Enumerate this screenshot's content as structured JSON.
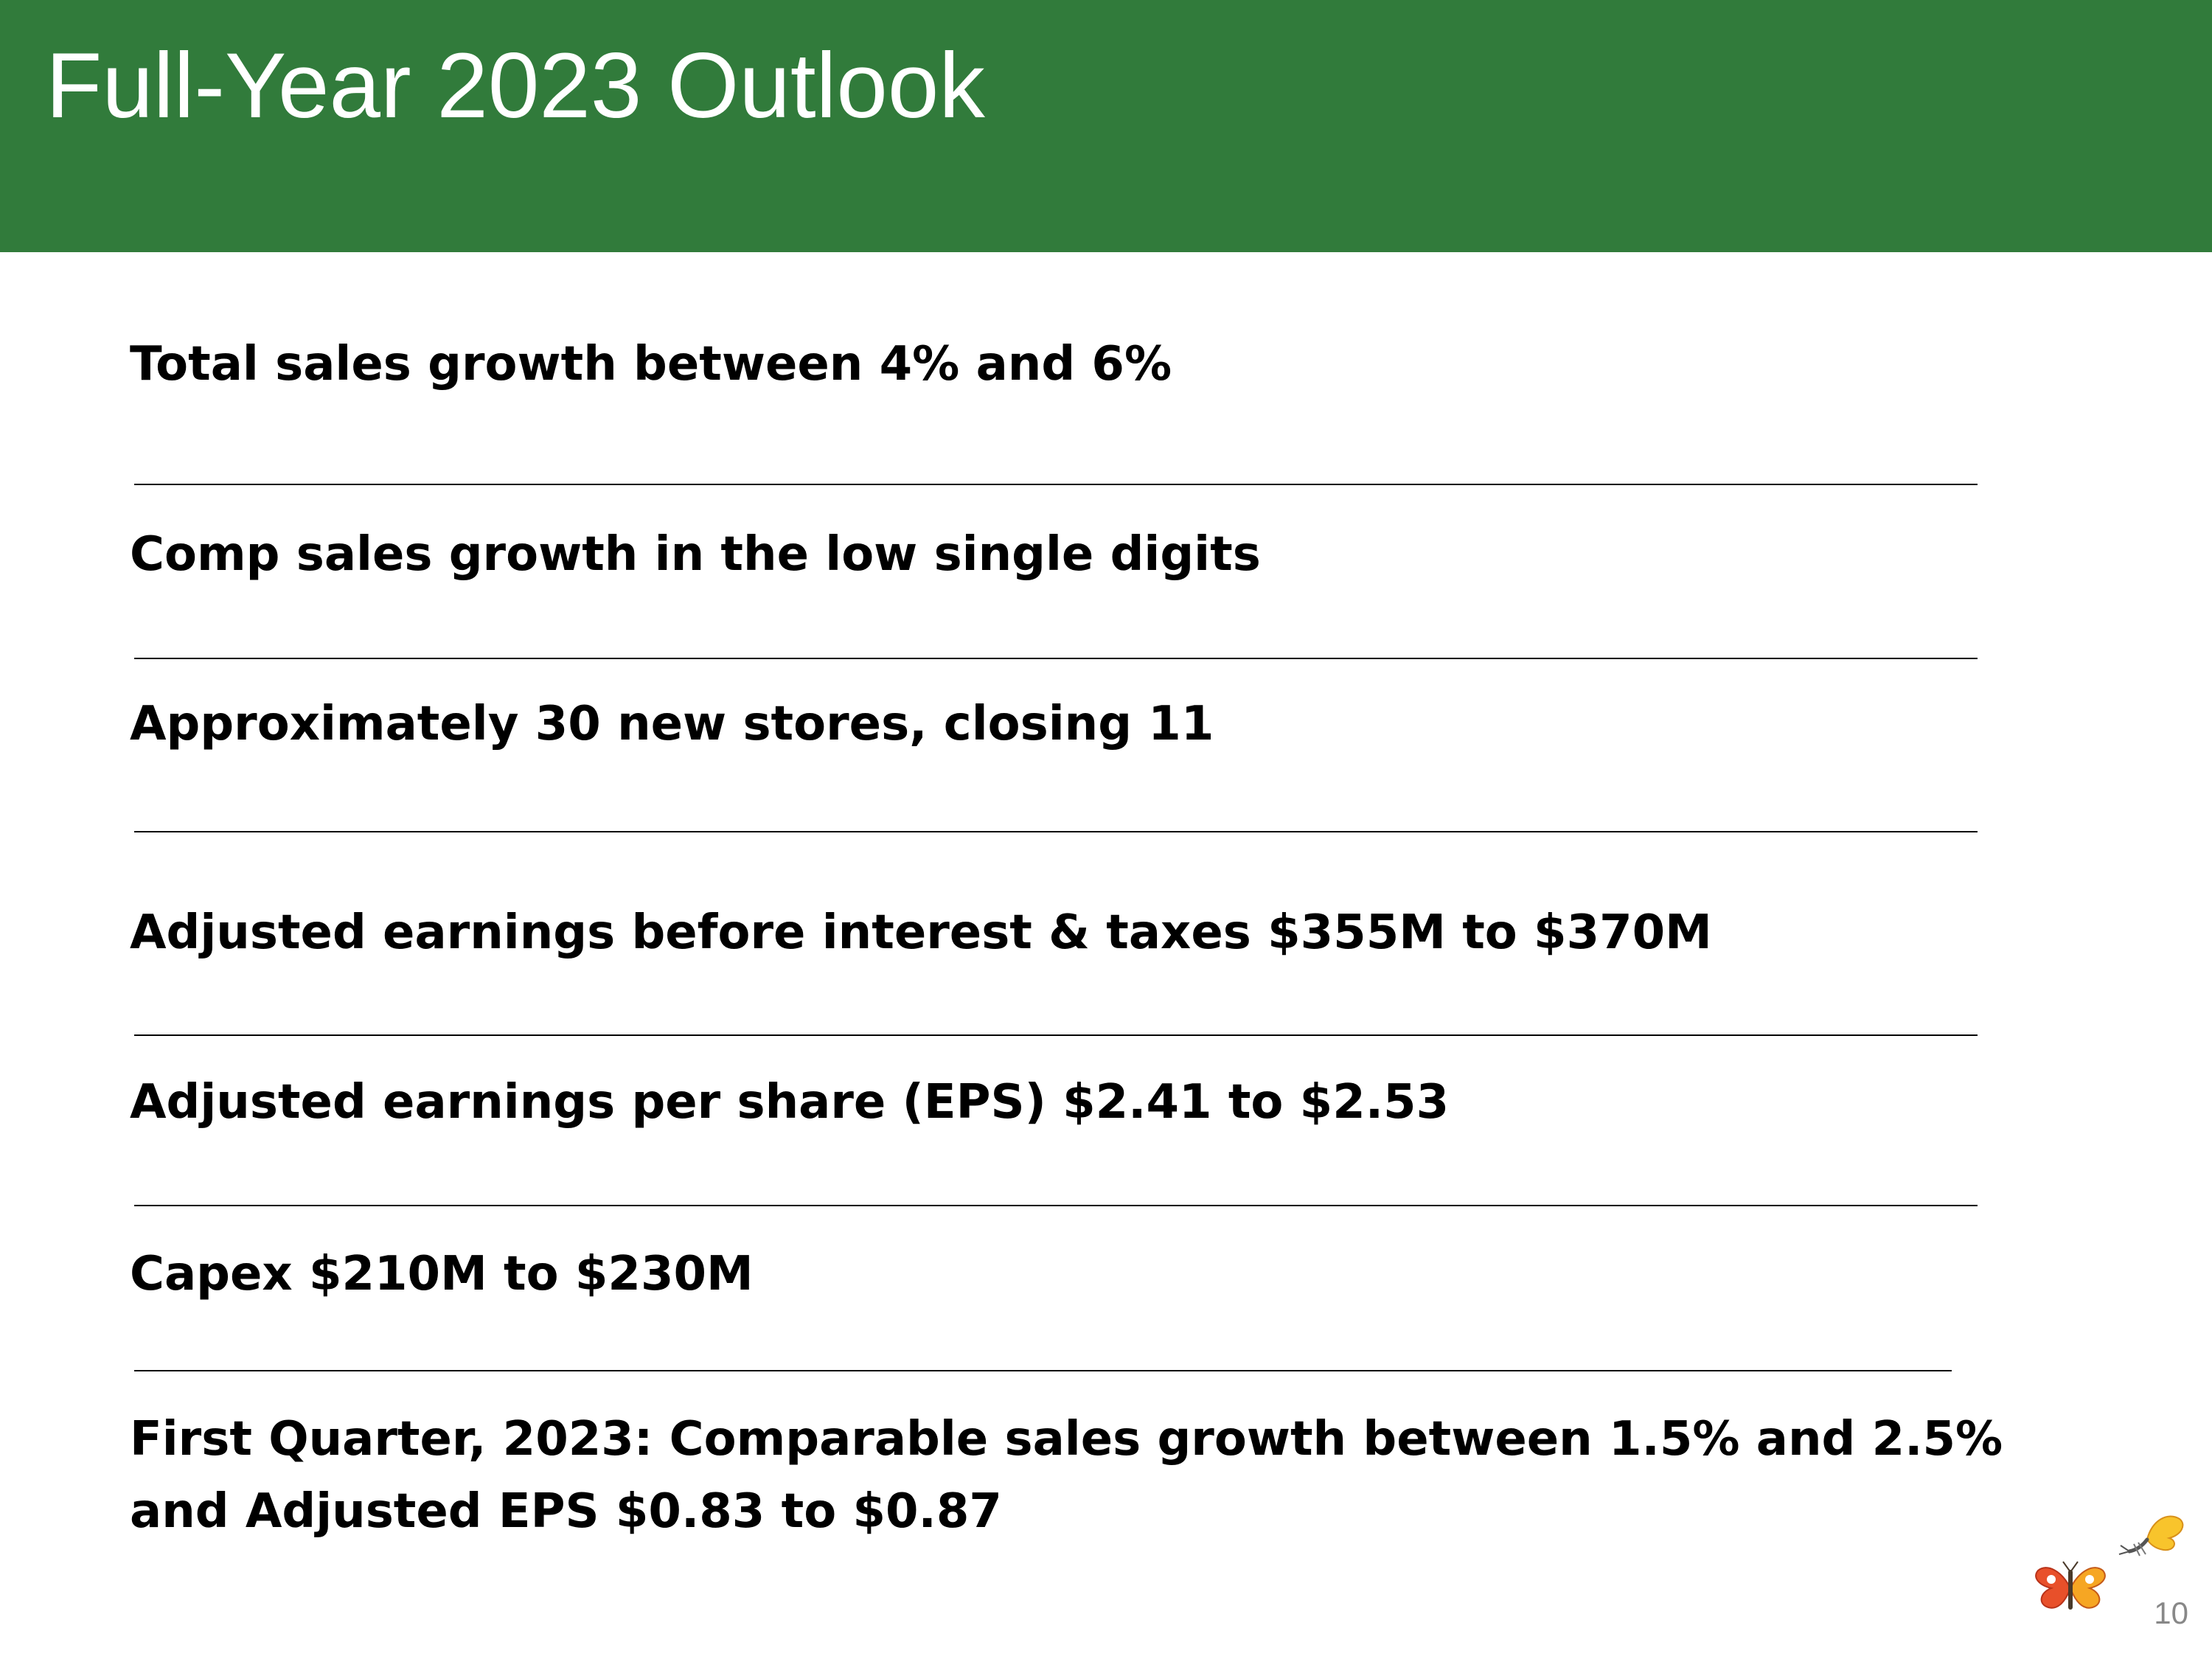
{
  "slide": {
    "title": "Full-Year 2023 Outlook",
    "items": [
      "Total sales growth between 4% and 6%",
      "Comp sales growth in the low single digits",
      "Approximately 30 new stores, closing 11",
      "Adjusted earnings before interest & taxes $355M to $370M",
      "Adjusted earnings per share (EPS) $2.41 to $2.53",
      "Capex $210M to $230M",
      "First Quarter, 2023: Comparable sales growth between 1.5% and 2.5%",
      "and Adjusted EPS  $0.83 to $0.87"
    ],
    "page_number": "10"
  },
  "colors": {
    "header_green": "#317b3b",
    "butterfly_red": "#e8502a",
    "butterfly_orange": "#f6a623",
    "butterfly_yellow": "#f8c42c"
  },
  "icons": [
    "butterfly-red-icon",
    "butterfly-yellow-icon"
  ]
}
